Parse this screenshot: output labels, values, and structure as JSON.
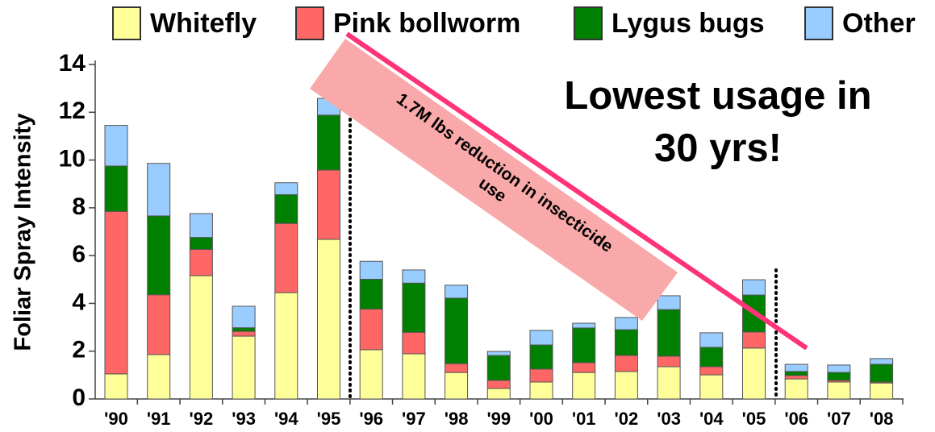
{
  "chart_data": {
    "type": "stacked_bar",
    "y_label": "Foliar Spray Intensity",
    "categories": [
      "'90",
      "'91",
      "'92",
      "'93",
      "'94",
      "'95",
      "'96",
      "'97",
      "'98",
      "'99",
      "'00",
      "'01",
      "'02",
      "'03",
      "'04",
      "'05",
      "'06",
      "'07",
      "'08"
    ],
    "series": [
      {
        "name": "Whitefly",
        "color": "#ffff99",
        "values": [
          1.05,
          1.86,
          5.16,
          2.63,
          4.45,
          6.68,
          2.06,
          1.89,
          1.11,
          0.44,
          0.71,
          1.11,
          1.15,
          1.35,
          1.01,
          2.13,
          0.84,
          0.71,
          0.67
        ]
      },
      {
        "name": "Pink bollworm",
        "color": "#ff6666",
        "values": [
          6.8,
          2.5,
          1.1,
          0.2,
          2.9,
          2.9,
          1.7,
          0.9,
          0.37,
          0.34,
          0.54,
          0.41,
          0.67,
          0.44,
          0.34,
          0.67,
          0.14,
          0.07,
          0.04
        ]
      },
      {
        "name": "Lygus bugs",
        "color": "#008000",
        "values": [
          1.9,
          3.3,
          0.5,
          0.15,
          1.2,
          2.3,
          1.25,
          2.06,
          2.74,
          1.04,
          1.01,
          1.45,
          1.08,
          1.95,
          0.81,
          1.55,
          0.17,
          0.33,
          0.74
        ]
      },
      {
        "name": "Other",
        "color": "#99ccff",
        "values": [
          1.7,
          2.2,
          1.0,
          0.9,
          0.5,
          0.7,
          0.75,
          0.55,
          0.54,
          0.17,
          0.61,
          0.2,
          0.51,
          0.58,
          0.61,
          0.64,
          0.3,
          0.31,
          0.24
        ]
      }
    ],
    "ylim": [
      0,
      14
    ],
    "yticks": [
      0,
      2,
      4,
      6,
      8,
      10,
      12,
      14
    ],
    "legend": "top",
    "headline": [
      "Lowest usage in",
      "30 yrs!"
    ],
    "reduction_note": [
      "1.7M lbs reduction in insecticide",
      "use"
    ]
  }
}
